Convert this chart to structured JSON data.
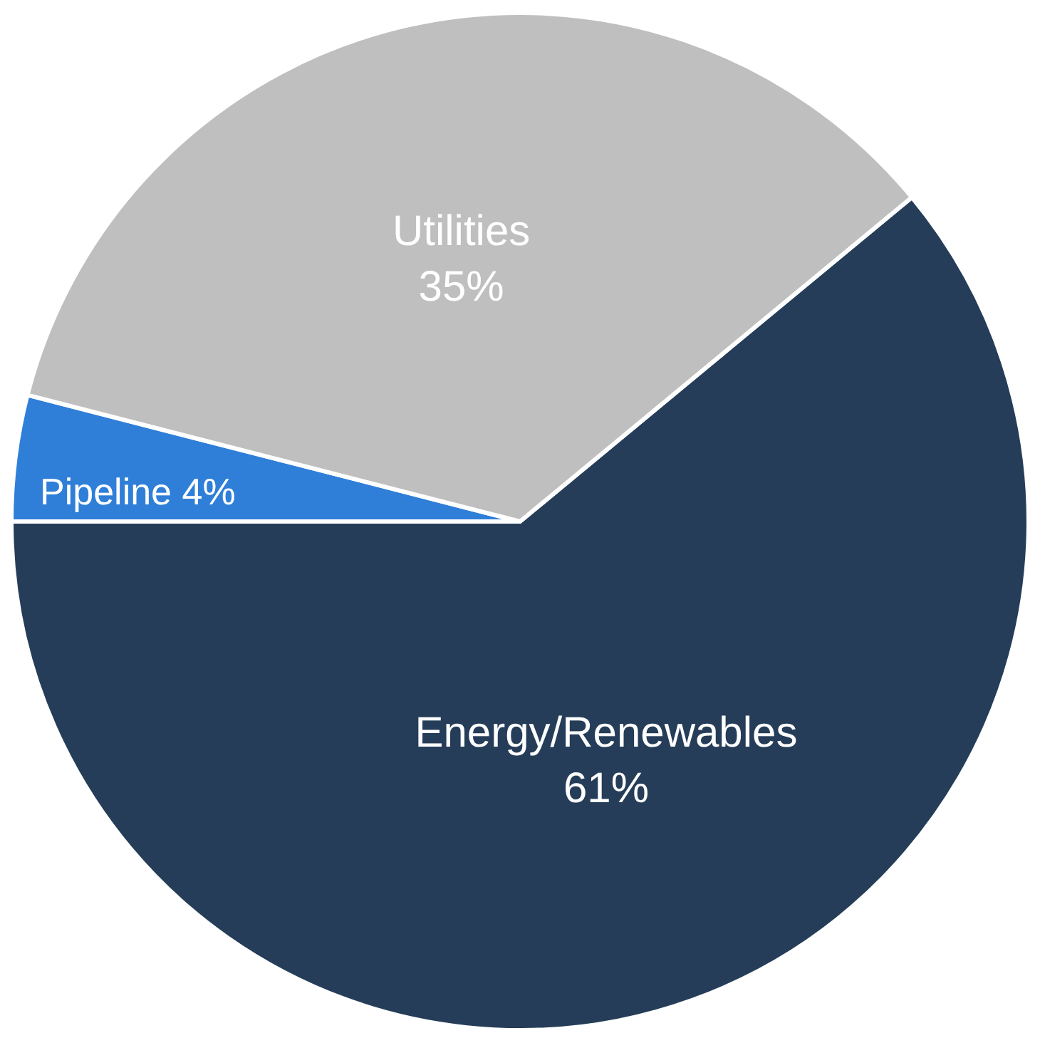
{
  "chart_data": {
    "type": "pie",
    "categories": [
      "Energy/Renewables",
      "Pipeline",
      "Utilities"
    ],
    "values": [
      61,
      4,
      35
    ],
    "value_labels": [
      "61%",
      "4%",
      "35%"
    ],
    "colors": [
      "#253d58",
      "#2f7fd8",
      "#bfbfbf"
    ],
    "legend": false
  }
}
